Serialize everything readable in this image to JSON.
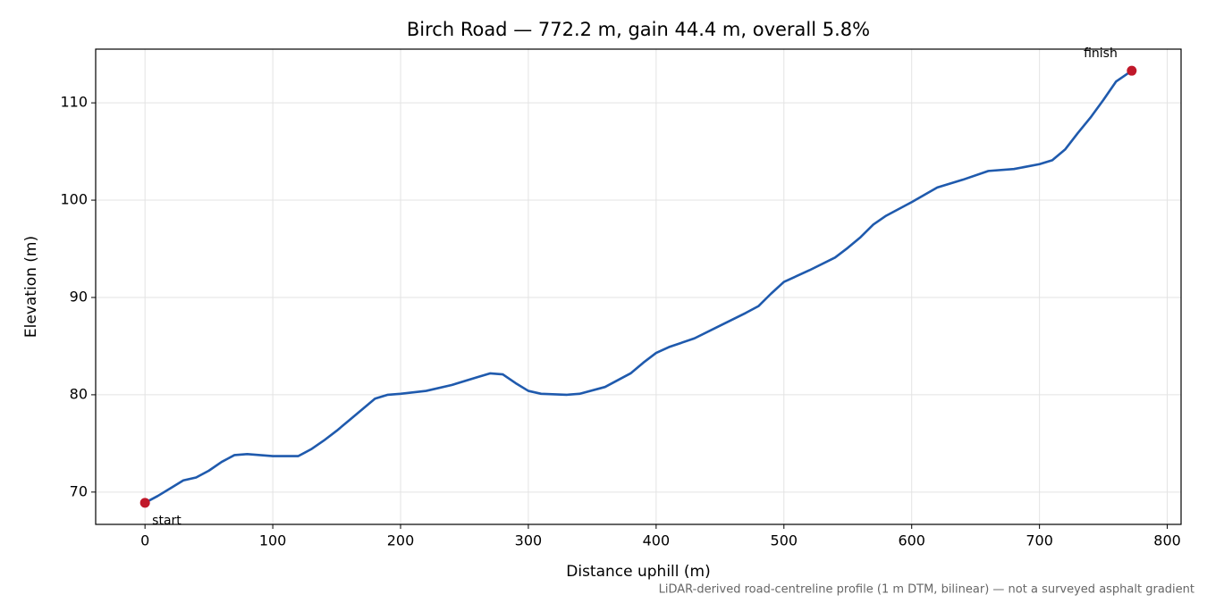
{
  "chart_data": {
    "type": "line",
    "title": "Birch Road — 772.2 m, gain 44.4 m, overall 5.8%",
    "x_label": "Distance uphill (m)",
    "y_label": "Elevation (m)",
    "footnote": "LiDAR-derived road-centreline profile (1 m DTM, bilinear) — not a surveyed asphalt gradient",
    "color": "#1f5aad",
    "x": [
      0,
      10,
      20,
      30,
      40,
      50,
      60,
      70,
      80,
      90,
      100,
      110,
      120,
      130,
      140,
      150,
      160,
      170,
      180,
      190,
      200,
      220,
      240,
      260,
      270,
      280,
      290,
      300,
      310,
      330,
      340,
      360,
      380,
      390,
      400,
      410,
      430,
      450,
      470,
      480,
      490,
      500,
      520,
      540,
      550,
      560,
      570,
      580,
      600,
      620,
      640,
      660,
      680,
      700,
      710,
      720,
      730,
      740,
      750,
      760,
      772.2
    ],
    "values": [
      68.9,
      69.6,
      70.4,
      71.2,
      71.5,
      72.2,
      73.1,
      73.8,
      73.9,
      73.8,
      73.7,
      73.7,
      73.7,
      74.4,
      75.3,
      76.3,
      77.4,
      78.5,
      79.6,
      80.0,
      80.1,
      80.4,
      81.0,
      81.8,
      82.2,
      82.1,
      81.2,
      80.4,
      80.1,
      80.0,
      80.1,
      80.8,
      82.2,
      83.3,
      84.3,
      84.9,
      85.8,
      87.1,
      88.4,
      89.1,
      90.4,
      91.6,
      92.8,
      94.1,
      95.1,
      96.2,
      97.5,
      98.4,
      99.8,
      101.3,
      102.1,
      103.0,
      103.2,
      103.7,
      104.1,
      105.2,
      106.9,
      108.5,
      110.3,
      112.2,
      113.3
    ],
    "markers": {
      "x": [
        0,
        772.2
      ],
      "y": [
        68.9,
        113.3
      ],
      "labels": [
        "start",
        "finish"
      ],
      "color": "#c0182a"
    },
    "xlim": [
      -38.6,
      810.8
    ],
    "ylim": [
      66.68,
      115.52
    ],
    "xticks": [
      0,
      100,
      200,
      300,
      400,
      500,
      600,
      700,
      800
    ],
    "yticks": [
      70,
      80,
      90,
      100,
      110
    ],
    "grid": true
  }
}
